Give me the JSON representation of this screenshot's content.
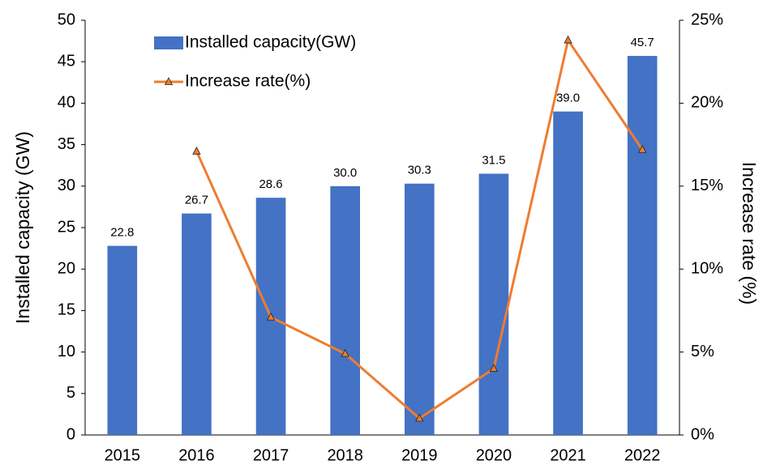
{
  "chart_data": {
    "type": "bar_line",
    "categories": [
      "2015",
      "2016",
      "2017",
      "2018",
      "2019",
      "2020",
      "2021",
      "2022"
    ],
    "series": [
      {
        "name": "Installed capacity(GW)",
        "type": "bar",
        "color": "#4472c4",
        "values": [
          22.8,
          26.7,
          28.6,
          30.0,
          30.3,
          31.5,
          39.0,
          45.7
        ],
        "value_labels": [
          "22.8",
          "26.7",
          "28.6",
          "30.0",
          "30.3",
          "31.5",
          "39.0",
          "45.7"
        ]
      },
      {
        "name": "Increase rate(%)",
        "type": "line",
        "axis": "y2",
        "color": "#ed7d31",
        "values": [
          null,
          17.1,
          7.1,
          4.9,
          1.0,
          4.0,
          23.8,
          17.2
        ]
      }
    ],
    "ylabel": "Installed capacity (GW)",
    "y2label": "Increase rate (%)",
    "ylim": [
      0,
      50
    ],
    "yticks": [
      0,
      5,
      10,
      15,
      20,
      25,
      30,
      35,
      40,
      45,
      50
    ],
    "y2lim": [
      0,
      25
    ],
    "y2ticks": [
      {
        "value": 0,
        "label": "0%"
      },
      {
        "value": 5,
        "label": "5%"
      },
      {
        "value": 10,
        "label": "10%"
      },
      {
        "value": 15,
        "label": "15%"
      },
      {
        "value": 20,
        "label": "20%"
      },
      {
        "value": 25,
        "label": "25%"
      }
    ],
    "legend": "upper left",
    "grid": false
  }
}
